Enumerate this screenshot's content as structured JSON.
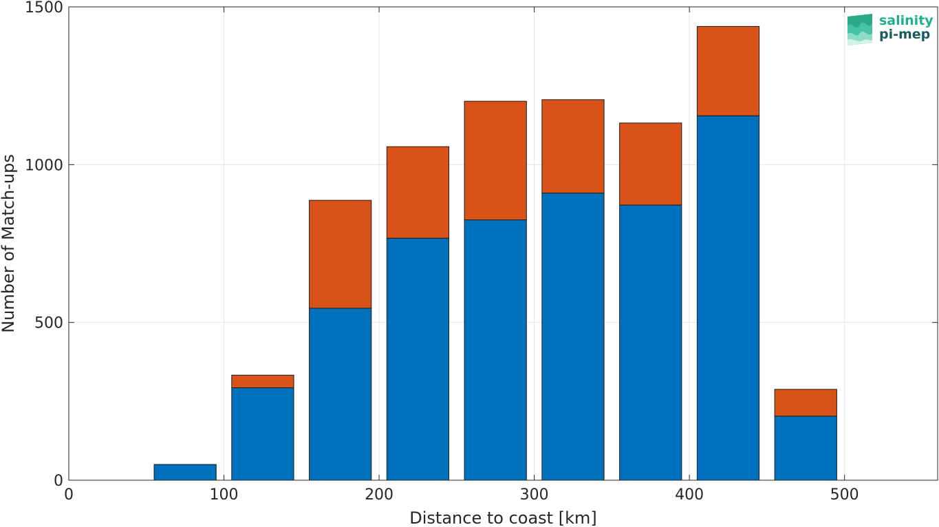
{
  "chart_data": {
    "type": "bar",
    "stacked": true,
    "x": [
      75,
      125,
      175,
      225,
      275,
      325,
      375,
      425,
      475
    ],
    "series": [
      {
        "color": "#0072BD",
        "values": [
          50,
          293,
          545,
          767,
          825,
          910,
          872,
          1155,
          203
        ]
      },
      {
        "color": "#D95319",
        "values": [
          0,
          40,
          342,
          290,
          376,
          296,
          260,
          283,
          85
        ]
      }
    ],
    "xlabel": "Distance to coast [km]",
    "ylabel": "Number of Match-ups",
    "xlim": [
      0,
      560
    ],
    "ylim": [
      0,
      1500
    ],
    "xticks": [
      0,
      100,
      200,
      300,
      400,
      500
    ],
    "yticks": [
      0,
      500,
      1000,
      1500
    ],
    "bar_width": 40,
    "grid": true
  },
  "logo": {
    "line1": "salinity",
    "line2": "pi-mep",
    "color1": "#1fae8e",
    "color2": "#1b5b5e"
  }
}
